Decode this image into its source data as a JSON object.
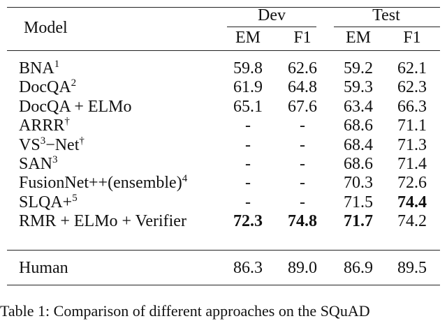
{
  "table": {
    "header": {
      "model": "Model",
      "groups": [
        "Dev",
        "Test"
      ],
      "columns": [
        "EM",
        "F1",
        "EM",
        "F1"
      ]
    },
    "rows": [
      {
        "model": [
          [
            "BNA",
            "1"
          ]
        ],
        "cells": [
          {
            "text": "59.8"
          },
          {
            "text": "62.6"
          },
          {
            "text": "59.2"
          },
          {
            "text": "62.1"
          }
        ]
      },
      {
        "model": [
          [
            "DocQA",
            "2"
          ]
        ],
        "cells": [
          {
            "text": "61.9"
          },
          {
            "text": "64.8"
          },
          {
            "text": "59.3"
          },
          {
            "text": "62.3"
          }
        ]
      },
      {
        "model": [
          [
            "DocQA + ELMo"
          ]
        ],
        "cells": [
          {
            "text": "65.1"
          },
          {
            "text": "67.6"
          },
          {
            "text": "63.4"
          },
          {
            "text": "66.3"
          }
        ]
      },
      {
        "model": [
          [
            "ARRR",
            "†"
          ]
        ],
        "cells": [
          {
            "text": "-"
          },
          {
            "text": "-"
          },
          {
            "text": "68.6"
          },
          {
            "text": "71.1"
          }
        ]
      },
      {
        "model": [
          [
            "VS",
            "3"
          ],
          [
            "−Net",
            "†"
          ]
        ],
        "cells": [
          {
            "text": "-"
          },
          {
            "text": "-"
          },
          {
            "text": "68.4"
          },
          {
            "text": "71.3"
          }
        ]
      },
      {
        "model": [
          [
            "SAN",
            "3"
          ]
        ],
        "cells": [
          {
            "text": "-"
          },
          {
            "text": "-"
          },
          {
            "text": "68.6"
          },
          {
            "text": "71.4"
          }
        ]
      },
      {
        "model": [
          [
            "FusionNet++(ensemble)",
            "4"
          ]
        ],
        "cells": [
          {
            "text": "-"
          },
          {
            "text": "-"
          },
          {
            "text": "70.3"
          },
          {
            "text": "72.6"
          }
        ]
      },
      {
        "model": [
          [
            "SLQA+",
            "5"
          ]
        ],
        "cells": [
          {
            "text": "-"
          },
          {
            "text": "-"
          },
          {
            "text": "71.5"
          },
          {
            "text": "74.4",
            "bold": true
          }
        ]
      },
      {
        "model": [
          [
            "RMR + ELMo + Verifier"
          ]
        ],
        "cells": [
          {
            "text": "72.3",
            "bold": true
          },
          {
            "text": "74.8",
            "bold": true
          },
          {
            "text": "71.7",
            "bold": true
          },
          {
            "text": "74.2"
          }
        ]
      }
    ],
    "footer_rows": [
      {
        "model": [
          [
            "Human"
          ]
        ],
        "cells": [
          {
            "text": "86.3"
          },
          {
            "text": "89.0"
          },
          {
            "text": "86.9"
          },
          {
            "text": "89.5"
          }
        ]
      }
    ]
  },
  "caption": "Table 1: Comparison of different approaches on the SQuAD"
}
